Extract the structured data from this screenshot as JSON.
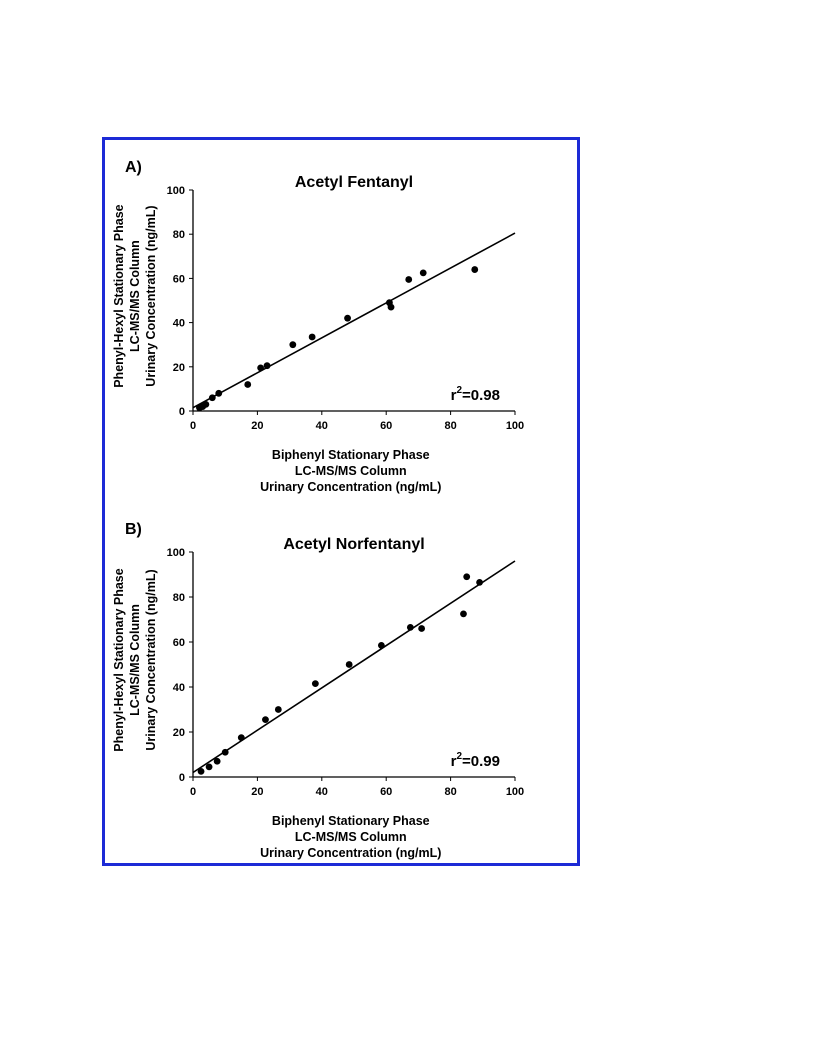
{
  "figure": {
    "border_color": "#1c2ad6"
  },
  "chart_data": [
    {
      "type": "scatter",
      "panel_label": "A)",
      "title": "Acetyl Fentanyl",
      "xlabel": [
        "Biphenyl Stationary Phase",
        "LC-MS/MS Column",
        "Urinary Concentration (ng/mL)"
      ],
      "ylabel": [
        "Phenyl-Hexyl Stationary Phase",
        "LC-MS/MS Column",
        "Urinary Concentration (ng/mL)"
      ],
      "xlim": [
        0,
        100
      ],
      "ylim": [
        0,
        100
      ],
      "xticks": [
        "0",
        "20",
        "40",
        "60",
        "80",
        "100"
      ],
      "yticks": [
        "0",
        "20",
        "40",
        "60",
        "80",
        "100"
      ],
      "r2_label": "r",
      "r2_sup": "2",
      "r2_value": "=0.98",
      "grid": false,
      "legend": "none",
      "fit_line": {
        "slope": 0.79,
        "intercept": 1.5
      },
      "x": [
        2,
        3,
        4,
        6,
        8,
        17,
        21,
        23,
        31,
        37,
        48,
        61,
        61.5,
        67,
        71.5,
        87.5
      ],
      "y": [
        1.5,
        2,
        3,
        6,
        8,
        12,
        19.5,
        20.5,
        30,
        33.5,
        42,
        49,
        47,
        59.5,
        62.5,
        64
      ]
    },
    {
      "type": "scatter",
      "panel_label": "B)",
      "title": "Acetyl Norfentanyl",
      "xlabel": [
        "Biphenyl Stationary Phase",
        "LC-MS/MS Column",
        "Urinary Concentration (ng/mL)"
      ],
      "ylabel": [
        "Phenyl-Hexyl Stationary Phase",
        "LC-MS/MS Column",
        "Urinary Concentration (ng/mL)"
      ],
      "xlim": [
        0,
        100
      ],
      "ylim": [
        0,
        100
      ],
      "xticks": [
        "0",
        "20",
        "40",
        "60",
        "80",
        "100"
      ],
      "yticks": [
        "0",
        "20",
        "40",
        "60",
        "80",
        "100"
      ],
      "r2_label": "r",
      "r2_sup": "2",
      "r2_value": "=0.99",
      "grid": false,
      "legend": "none",
      "fit_line": {
        "slope": 0.94,
        "intercept": 2
      },
      "x": [
        2.5,
        5,
        7.5,
        10,
        15,
        22.5,
        26.5,
        38,
        48.5,
        58.5,
        67.5,
        71,
        84,
        85,
        89
      ],
      "y": [
        2.5,
        4.5,
        7,
        11,
        17.5,
        25.5,
        30,
        41.5,
        50,
        58.5,
        66.5,
        66,
        72.5,
        89,
        86.5
      ]
    }
  ]
}
